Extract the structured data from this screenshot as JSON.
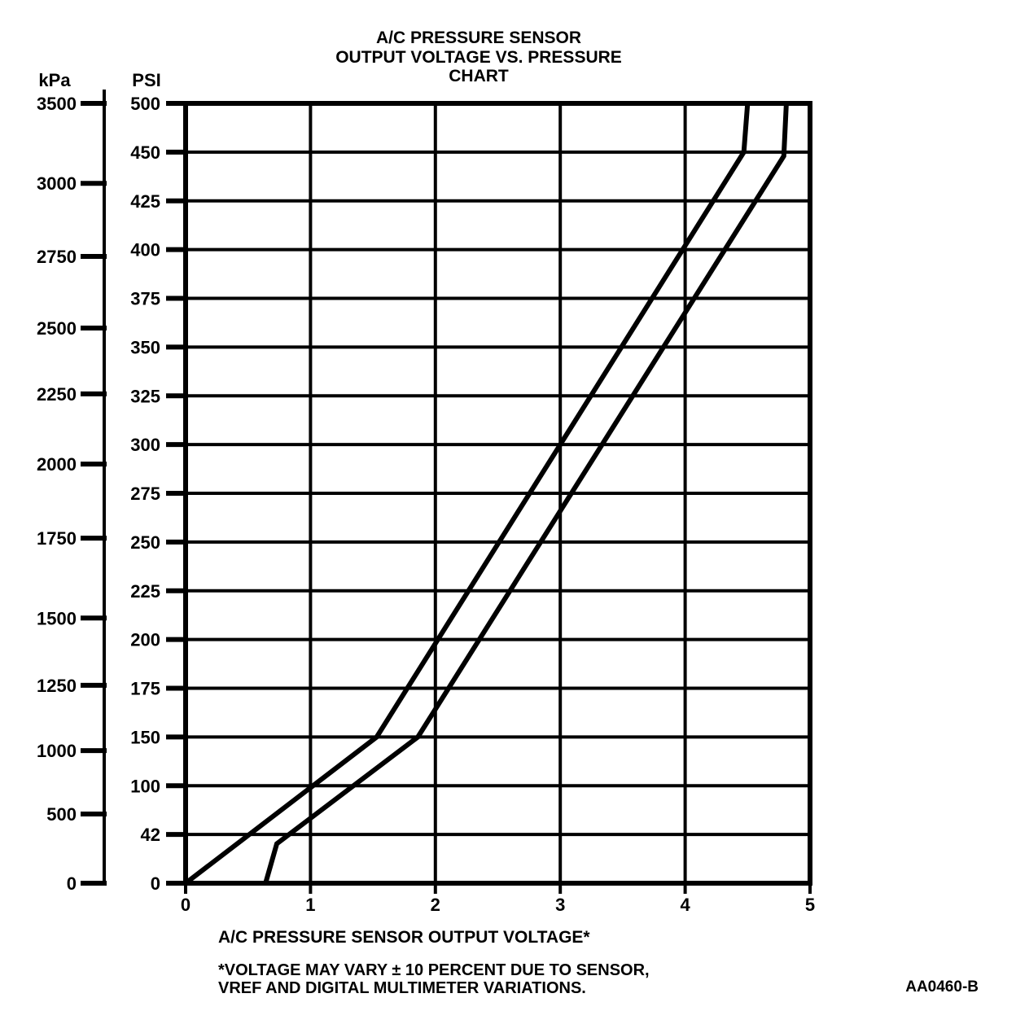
{
  "page": {
    "background": "#ffffff",
    "ink": "#000000"
  },
  "chart_data": {
    "type": "line",
    "title": "A/C PRESSURE SENSOR OUTPUT VOLTAGE VS. PRESSURE CHART",
    "title_lines": [
      "A/C PRESSURE SENSOR",
      "OUTPUT VOLTAGE VS. PRESSURE",
      "CHART"
    ],
    "xlabel": "A/C PRESSURE SENSOR OUTPUT VOLTAGE*",
    "footnote_lines": [
      "*VOLTAGE MAY VARY ± 10 PERCENT DUE TO SENSOR,",
      "VREF AND DIGITAL MULTIMETER VARIATIONS."
    ],
    "doc_code": "AA0460-B",
    "grid": true,
    "legend": false,
    "x_axis": {
      "unit": "volts",
      "min": 0,
      "max": 5,
      "ticks": [
        0,
        1,
        2,
        3,
        4,
        5
      ]
    },
    "psi_axis": {
      "label": "PSI",
      "note": "non-linear scale: equal grid spacing per labeled row",
      "ticks": [
        {
          "value": 0,
          "row": 0
        },
        {
          "value": 42,
          "row": 1
        },
        {
          "value": 100,
          "row": 2
        },
        {
          "value": 150,
          "row": 3
        },
        {
          "value": 175,
          "row": 4
        },
        {
          "value": 200,
          "row": 5
        },
        {
          "value": 225,
          "row": 6
        },
        {
          "value": 250,
          "row": 7
        },
        {
          "value": 275,
          "row": 8
        },
        {
          "value": 300,
          "row": 9
        },
        {
          "value": 325,
          "row": 10
        },
        {
          "value": 350,
          "row": 11
        },
        {
          "value": 375,
          "row": 12
        },
        {
          "value": 400,
          "row": 13
        },
        {
          "value": 425,
          "row": 14
        },
        {
          "value": 450,
          "row": 15
        },
        {
          "value": 500,
          "row": 16
        }
      ]
    },
    "kpa_axis": {
      "label": "kPa",
      "ticks": [
        {
          "value": 0,
          "row": 0
        },
        {
          "value": 500,
          "row": 1.42
        },
        {
          "value": 1000,
          "row": 2.72
        },
        {
          "value": 1250,
          "row": 4.06
        },
        {
          "value": 1500,
          "row": 5.44
        },
        {
          "value": 1750,
          "row": 7.08
        },
        {
          "value": 2000,
          "row": 8.6
        },
        {
          "value": 2250,
          "row": 10.04
        },
        {
          "value": 2500,
          "row": 11.39
        },
        {
          "value": 2750,
          "row": 12.86
        },
        {
          "value": 3000,
          "row": 14.36
        },
        {
          "value": 3500,
          "row": 16
        }
      ]
    },
    "series": [
      {
        "name": "upper-tolerance-line",
        "points": [
          {
            "v": 0.0,
            "psi": 0
          },
          {
            "v": 1.53,
            "psi": 150
          },
          {
            "v": 4.47,
            "psi": 450
          },
          {
            "v": 4.5,
            "psi": 500
          }
        ]
      },
      {
        "name": "lower-tolerance-line",
        "points": [
          {
            "v": 0.64,
            "psi": 0
          },
          {
            "v": 0.73,
            "psi": 34
          },
          {
            "v": 1.86,
            "psi": 150
          },
          {
            "v": 4.79,
            "psi": 448
          },
          {
            "v": 4.81,
            "psi": 500
          }
        ]
      }
    ]
  }
}
